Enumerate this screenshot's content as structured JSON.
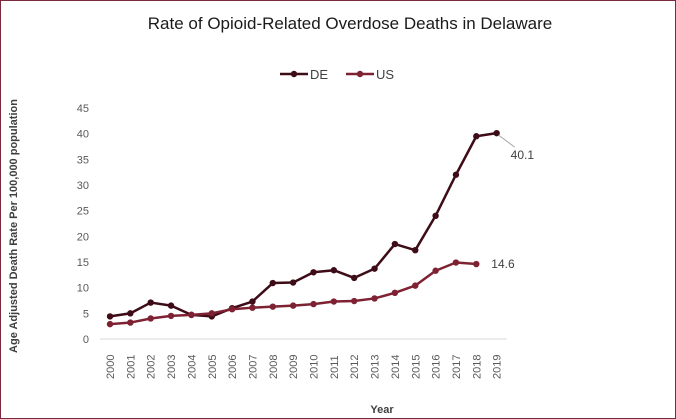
{
  "chart_data": {
    "type": "line",
    "title": "Rate of Opioid-Related Overdose Deaths in Delaware",
    "xlabel": "Year",
    "ylabel": "Age Adjusted Death Rate Per 100,000 population",
    "ylim": [
      0,
      45
    ],
    "yticks": [
      0,
      5,
      10,
      15,
      20,
      25,
      30,
      35,
      40,
      45
    ],
    "grid": false,
    "legend_position": "top-center",
    "categories": [
      "2000",
      "2001",
      "2002",
      "2003",
      "2004",
      "2005",
      "2006",
      "2007",
      "2008",
      "2009",
      "2010",
      "2011",
      "2012",
      "2013",
      "2014",
      "2015",
      "2016",
      "2017",
      "2018",
      "2019"
    ],
    "series": [
      {
        "name": "DE",
        "color": "#3d0c17",
        "values": [
          4.4,
          5.0,
          7.1,
          6.5,
          4.7,
          4.4,
          6.0,
          7.3,
          10.9,
          11.0,
          13.0,
          13.4,
          11.9,
          13.7,
          18.5,
          17.3,
          24.0,
          32.0,
          39.5,
          40.1
        ],
        "end_label": "40.1"
      },
      {
        "name": "US",
        "color": "#7e2233",
        "values": [
          2.9,
          3.2,
          4.0,
          4.5,
          4.7,
          5.0,
          5.8,
          6.1,
          6.3,
          6.5,
          6.8,
          7.3,
          7.4,
          7.9,
          9.0,
          10.4,
          13.3,
          14.9,
          14.6,
          null
        ],
        "end_label": "14.6"
      }
    ]
  }
}
